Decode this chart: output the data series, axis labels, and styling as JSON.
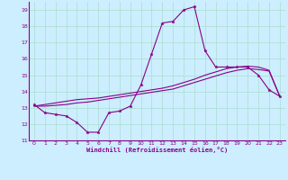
{
  "bg_color": "#cceeff",
  "grid_color": "#aaddcc",
  "line_color": "#880088",
  "title": "Windchill (Refroidissement éolien,°C)",
  "xlim": [
    -0.5,
    23.5
  ],
  "ylim": [
    11,
    19.5
  ],
  "yticks": [
    11,
    12,
    13,
    14,
    15,
    16,
    17,
    18,
    19
  ],
  "xticks": [
    0,
    1,
    2,
    3,
    4,
    5,
    6,
    7,
    8,
    9,
    10,
    11,
    12,
    13,
    14,
    15,
    16,
    17,
    18,
    19,
    20,
    21,
    22,
    23
  ],
  "series1_x": [
    0,
    1,
    2,
    3,
    4,
    5,
    6,
    7,
    8,
    9,
    10,
    11,
    12,
    13,
    14,
    15,
    16,
    17,
    18,
    19,
    20,
    21,
    22,
    23
  ],
  "series1_y": [
    13.2,
    12.7,
    12.6,
    12.5,
    12.1,
    11.5,
    11.5,
    12.7,
    12.8,
    13.1,
    14.4,
    16.3,
    18.2,
    18.3,
    19.0,
    19.2,
    16.5,
    15.5,
    15.5,
    15.5,
    15.5,
    15.0,
    14.1,
    13.7
  ],
  "series2_x": [
    0,
    1,
    2,
    3,
    4,
    5,
    6,
    7,
    8,
    9,
    10,
    11,
    12,
    13,
    14,
    15,
    16,
    17,
    18,
    19,
    20,
    21,
    22,
    23
  ],
  "series2_y": [
    13.1,
    13.1,
    13.15,
    13.2,
    13.3,
    13.35,
    13.45,
    13.55,
    13.65,
    13.75,
    13.85,
    13.95,
    14.05,
    14.15,
    14.35,
    14.55,
    14.75,
    14.95,
    15.15,
    15.3,
    15.4,
    15.35,
    15.25,
    13.7
  ],
  "series3_x": [
    0,
    1,
    2,
    3,
    4,
    5,
    6,
    7,
    8,
    9,
    10,
    11,
    12,
    13,
    14,
    15,
    16,
    17,
    18,
    19,
    20,
    21,
    22,
    23
  ],
  "series3_y": [
    13.1,
    13.2,
    13.3,
    13.4,
    13.5,
    13.55,
    13.6,
    13.7,
    13.8,
    13.9,
    14.0,
    14.1,
    14.2,
    14.35,
    14.55,
    14.75,
    15.0,
    15.2,
    15.4,
    15.5,
    15.55,
    15.5,
    15.3,
    13.7
  ]
}
